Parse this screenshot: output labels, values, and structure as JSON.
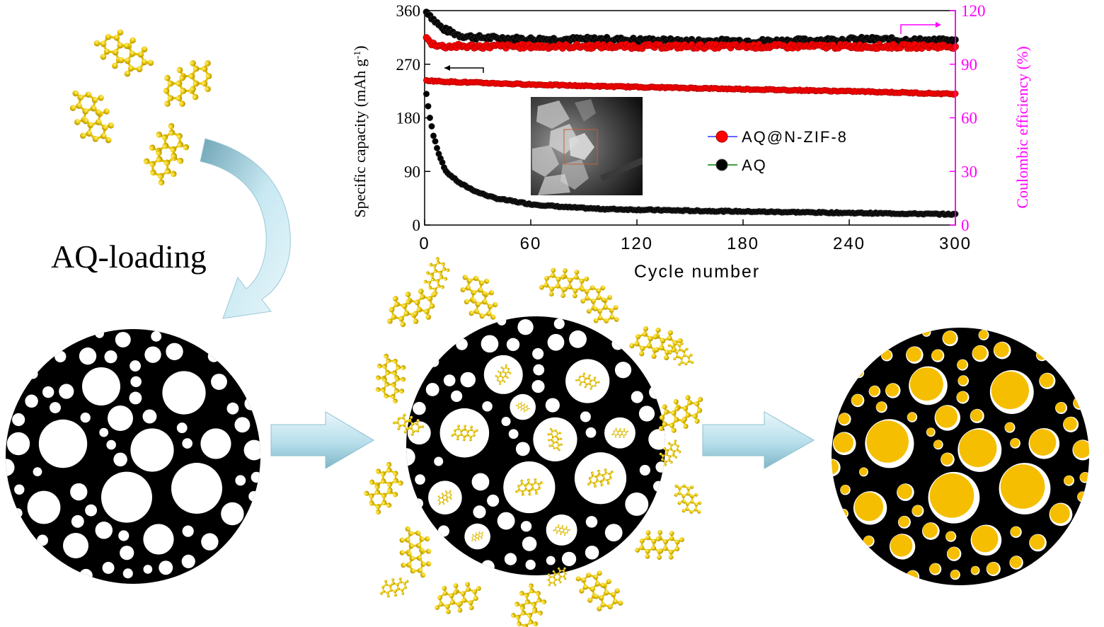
{
  "chart_data": {
    "type": "scatter",
    "x_axis": {
      "label": "Cycle number",
      "range": [
        0,
        300
      ],
      "ticks": [
        0,
        60,
        120,
        180,
        240,
        300
      ]
    },
    "y_axis_left": {
      "label": "Specific capacity (mAh g",
      "label_sup": "-1",
      "label_close": ")",
      "range": [
        0,
        360
      ],
      "ticks": [
        0,
        90,
        180,
        270,
        360
      ]
    },
    "y_axis_right": {
      "label": "Coulombic efficiency (%)",
      "range": [
        0,
        120
      ],
      "ticks": [
        0,
        30,
        60,
        90,
        120
      ],
      "color": "#ff00ff"
    },
    "series": [
      {
        "name": "AQ@N-ZIF-8",
        "color": "#ff0000",
        "axis": "left",
        "capacity": {
          "x": [
            1,
            5,
            10,
            20,
            40,
            60,
            100,
            150,
            200,
            250,
            300
          ],
          "y": [
            243,
            242,
            241,
            240,
            238,
            236,
            233,
            230,
            227,
            224,
            220
          ]
        },
        "coulombic_efficiency": {
          "x": [
            1,
            3,
            10,
            30,
            60,
            100,
            150,
            200,
            250,
            300
          ],
          "y": [
            105,
            102,
            100,
            100,
            100,
            100,
            100,
            100,
            100,
            100
          ]
        }
      },
      {
        "name": "AQ",
        "color": "#000000",
        "axis": "left",
        "capacity": {
          "x": [
            1,
            3,
            5,
            8,
            12,
            20,
            30,
            40,
            60,
            80,
            100,
            150,
            200,
            250,
            300
          ],
          "y": [
            220,
            180,
            150,
            120,
            90,
            70,
            55,
            45,
            35,
            30,
            27,
            24,
            22,
            20,
            18
          ]
        },
        "coulombic_efficiency": {
          "x": [
            1,
            5,
            10,
            20,
            30,
            60,
            100,
            150,
            200,
            250,
            300
          ],
          "y": [
            120,
            115,
            110,
            106,
            105,
            104,
            104,
            103,
            103,
            104,
            103
          ]
        }
      }
    ],
    "legend_position": "center-right",
    "grid": false
  },
  "labels": {
    "aq_loading": "AQ-loading"
  },
  "colors": {
    "particle_black": "#000000",
    "pore_white": "#ffffff",
    "aq_molecule": "#e6c200",
    "aq_loaded_pore": "#f5be00",
    "arrow_fill": "#aadbe8"
  }
}
